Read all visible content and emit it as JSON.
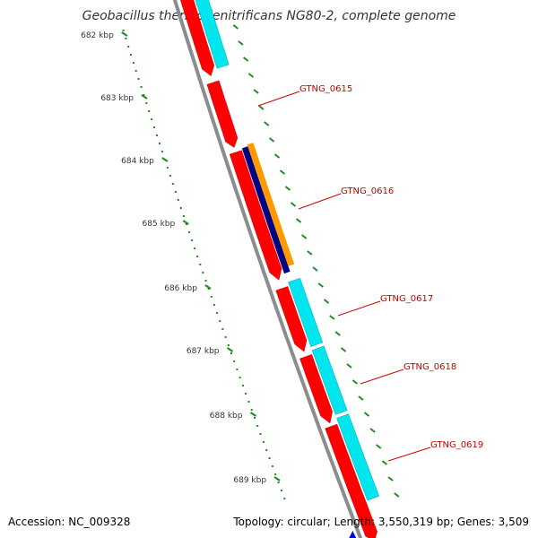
{
  "title": "Geobacillus thermodenitrificans NG80-2, complete genome",
  "footer": {
    "accession": "Accession: NC_009328",
    "topology": "Topology: circular; Length: 3,550,319 bp; Genes: 3,509"
  },
  "colors": {
    "backbone": "#8c8c8c",
    "gene_forward": "#ff0000",
    "gene_reverse": "#00e5ee",
    "gene_orange": "#ff9900",
    "gene_navy": "#000080",
    "tick": "#228b22",
    "label": "#cc0000",
    "arrow_blue": "#0000ff"
  },
  "scale_ticks": [
    {
      "label": "682 kbp"
    },
    {
      "label": "683 kbp"
    },
    {
      "label": "684 kbp"
    },
    {
      "label": "685 kbp"
    },
    {
      "label": "686 kbp"
    },
    {
      "label": "687 kbp"
    },
    {
      "label": "688 kbp"
    },
    {
      "label": "689 kbp"
    }
  ],
  "gene_labels": [
    {
      "text": "GTNG_0615"
    },
    {
      "text": "GTNG_0616"
    },
    {
      "text": "GTNG_0617"
    },
    {
      "text": "GTNG_0618"
    },
    {
      "text": "GTNG_0619"
    }
  ]
}
